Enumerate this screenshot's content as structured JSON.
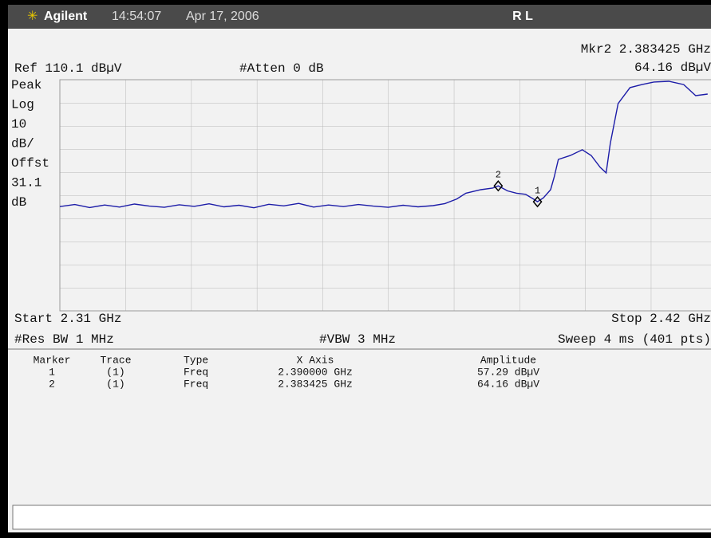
{
  "header": {
    "brand": "Agilent",
    "time": "14:54:07",
    "date": "Apr 17, 2006",
    "mode": "R L"
  },
  "annotations": {
    "marker_readout": "Mkr2  2.383425 GHz",
    "marker_amplitude": "64.16 dBµV",
    "reference": "Ref 110.1 dBµV",
    "attenuation": "#Atten 0 dB",
    "scale": [
      "Peak",
      "Log",
      "10",
      "dB/",
      "Offst",
      "31.1",
      "dB"
    ],
    "start": "Start 2.31 GHz",
    "stop": "Stop 2.42 GHz",
    "rbw": "#Res BW 1 MHz",
    "vbw": "#VBW 3 MHz",
    "sweep": "Sweep 4 ms (401 pts)"
  },
  "chart_data": {
    "type": "line",
    "x": [
      2.31,
      2.3125,
      2.315,
      2.3175,
      2.32,
      2.3225,
      2.325,
      2.3275,
      2.33,
      2.3325,
      2.335,
      2.3375,
      2.34,
      2.3425,
      2.345,
      2.3475,
      2.35,
      2.3525,
      2.355,
      2.3575,
      2.36,
      2.3625,
      2.365,
      2.3675,
      2.37,
      2.3725,
      2.3745,
      2.3765,
      2.378,
      2.3805,
      2.3825,
      2.383425,
      2.385,
      2.3865,
      2.388,
      2.3895,
      2.39,
      2.391,
      2.3922,
      2.3928,
      2.3935,
      2.3955,
      2.3975,
      2.399,
      2.4005,
      2.4015,
      2.4022,
      2.4035,
      2.4055,
      2.4075,
      2.4095,
      2.412,
      2.4145,
      2.4165,
      2.4185
    ],
    "series": [
      {
        "color": "#1c1ca8",
        "values": [
          55.2,
          56.1,
          54.8,
          55.9,
          55.0,
          56.3,
          55.4,
          54.9,
          56.0,
          55.3,
          56.4,
          55.1,
          55.8,
          54.7,
          56.2,
          55.5,
          56.6,
          55.0,
          55.9,
          55.2,
          56.1,
          55.4,
          54.9,
          55.8,
          55.1,
          55.6,
          56.5,
          58.5,
          61.0,
          62.5,
          63.2,
          64.16,
          62.0,
          61.0,
          60.5,
          58.2,
          57.29,
          59.0,
          62.5,
          68.0,
          75.6,
          77.3,
          79.8,
          77.3,
          72.2,
          69.8,
          82.5,
          99.8,
          106.7,
          108.0,
          109.1,
          109.4,
          108.0,
          103.2,
          103.9
        ]
      }
    ],
    "xlim": [
      2.31,
      2.42
    ],
    "ylim": [
      10.1,
      110.1
    ],
    "grid": true,
    "markers": [
      {
        "label": "1",
        "x": 2.39,
        "y": 57.29
      },
      {
        "label": "2",
        "x": 2.383425,
        "y": 64.16
      }
    ]
  },
  "marker_table": {
    "columns": [
      "Marker",
      "Trace",
      "Type",
      "X Axis",
      "Amplitude"
    ],
    "rows": [
      [
        "1",
        "(1)",
        "Freq",
        "2.390000 GHz",
        "57.29 dBµV"
      ],
      [
        "2",
        "(1)",
        "Freq",
        "2.383425 GHz",
        "64.16 dBµV"
      ]
    ]
  }
}
